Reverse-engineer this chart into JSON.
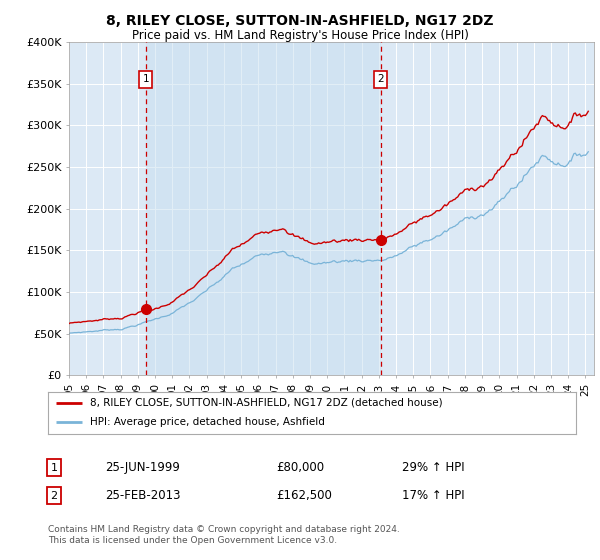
{
  "title": "8, RILEY CLOSE, SUTTON-IN-ASHFIELD, NG17 2DZ",
  "subtitle": "Price paid vs. HM Land Registry's House Price Index (HPI)",
  "bg_color": "#dce9f5",
  "red_line_label": "8, RILEY CLOSE, SUTTON-IN-ASHFIELD, NG17 2DZ (detached house)",
  "blue_line_label": "HPI: Average price, detached house, Ashfield",
  "transaction1_label": "1",
  "transaction1_date": "25-JUN-1999",
  "transaction1_price": "£80,000",
  "transaction1_hpi": "29% ↑ HPI",
  "transaction2_label": "2",
  "transaction2_date": "25-FEB-2013",
  "transaction2_price": "£162,500",
  "transaction2_hpi": "17% ↑ HPI",
  "copyright_text": "Contains HM Land Registry data © Crown copyright and database right 2024.\nThis data is licensed under the Open Government Licence v3.0.",
  "ylim": [
    0,
    400000
  ],
  "yticks": [
    0,
    50000,
    100000,
    150000,
    200000,
    250000,
    300000,
    350000,
    400000
  ],
  "ytick_labels": [
    "£0",
    "£50K",
    "£100K",
    "£150K",
    "£200K",
    "£250K",
    "£300K",
    "£350K",
    "£400K"
  ],
  "marker1_year": 1999.46,
  "marker1_price": 80000,
  "marker2_year": 2013.12,
  "marker2_price": 162500,
  "vline1_year": 1999.46,
  "vline2_year": 2013.12
}
